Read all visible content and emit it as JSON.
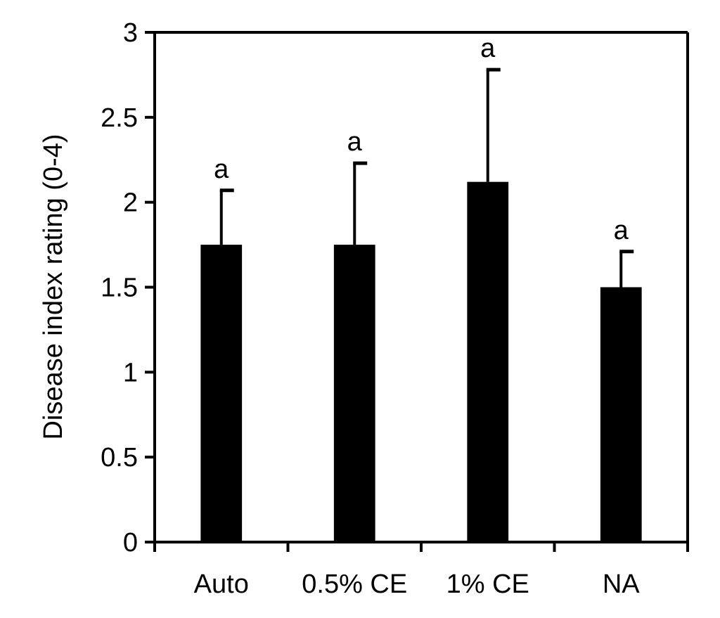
{
  "chart_data": {
    "type": "bar",
    "title": "",
    "xlabel": "",
    "ylabel": "Disease index rating (0-4)",
    "ylim": [
      0,
      3
    ],
    "yticks": [
      "0",
      "0.5",
      "1",
      "1.5",
      "2",
      "2.5",
      "3"
    ],
    "yticks_values": [
      0,
      0.5,
      1,
      1.5,
      2,
      2.5,
      3
    ],
    "categories": [
      "Auto",
      "0.5% CE",
      "1% CE",
      "NA"
    ],
    "values": [
      1.75,
      1.75,
      2.12,
      1.5
    ],
    "error_upper": [
      0.32,
      0.48,
      0.66,
      0.21
    ],
    "significance": [
      "a",
      "a",
      "a",
      "a"
    ],
    "bar_color": "#000000",
    "grid": false,
    "legend": "none"
  }
}
